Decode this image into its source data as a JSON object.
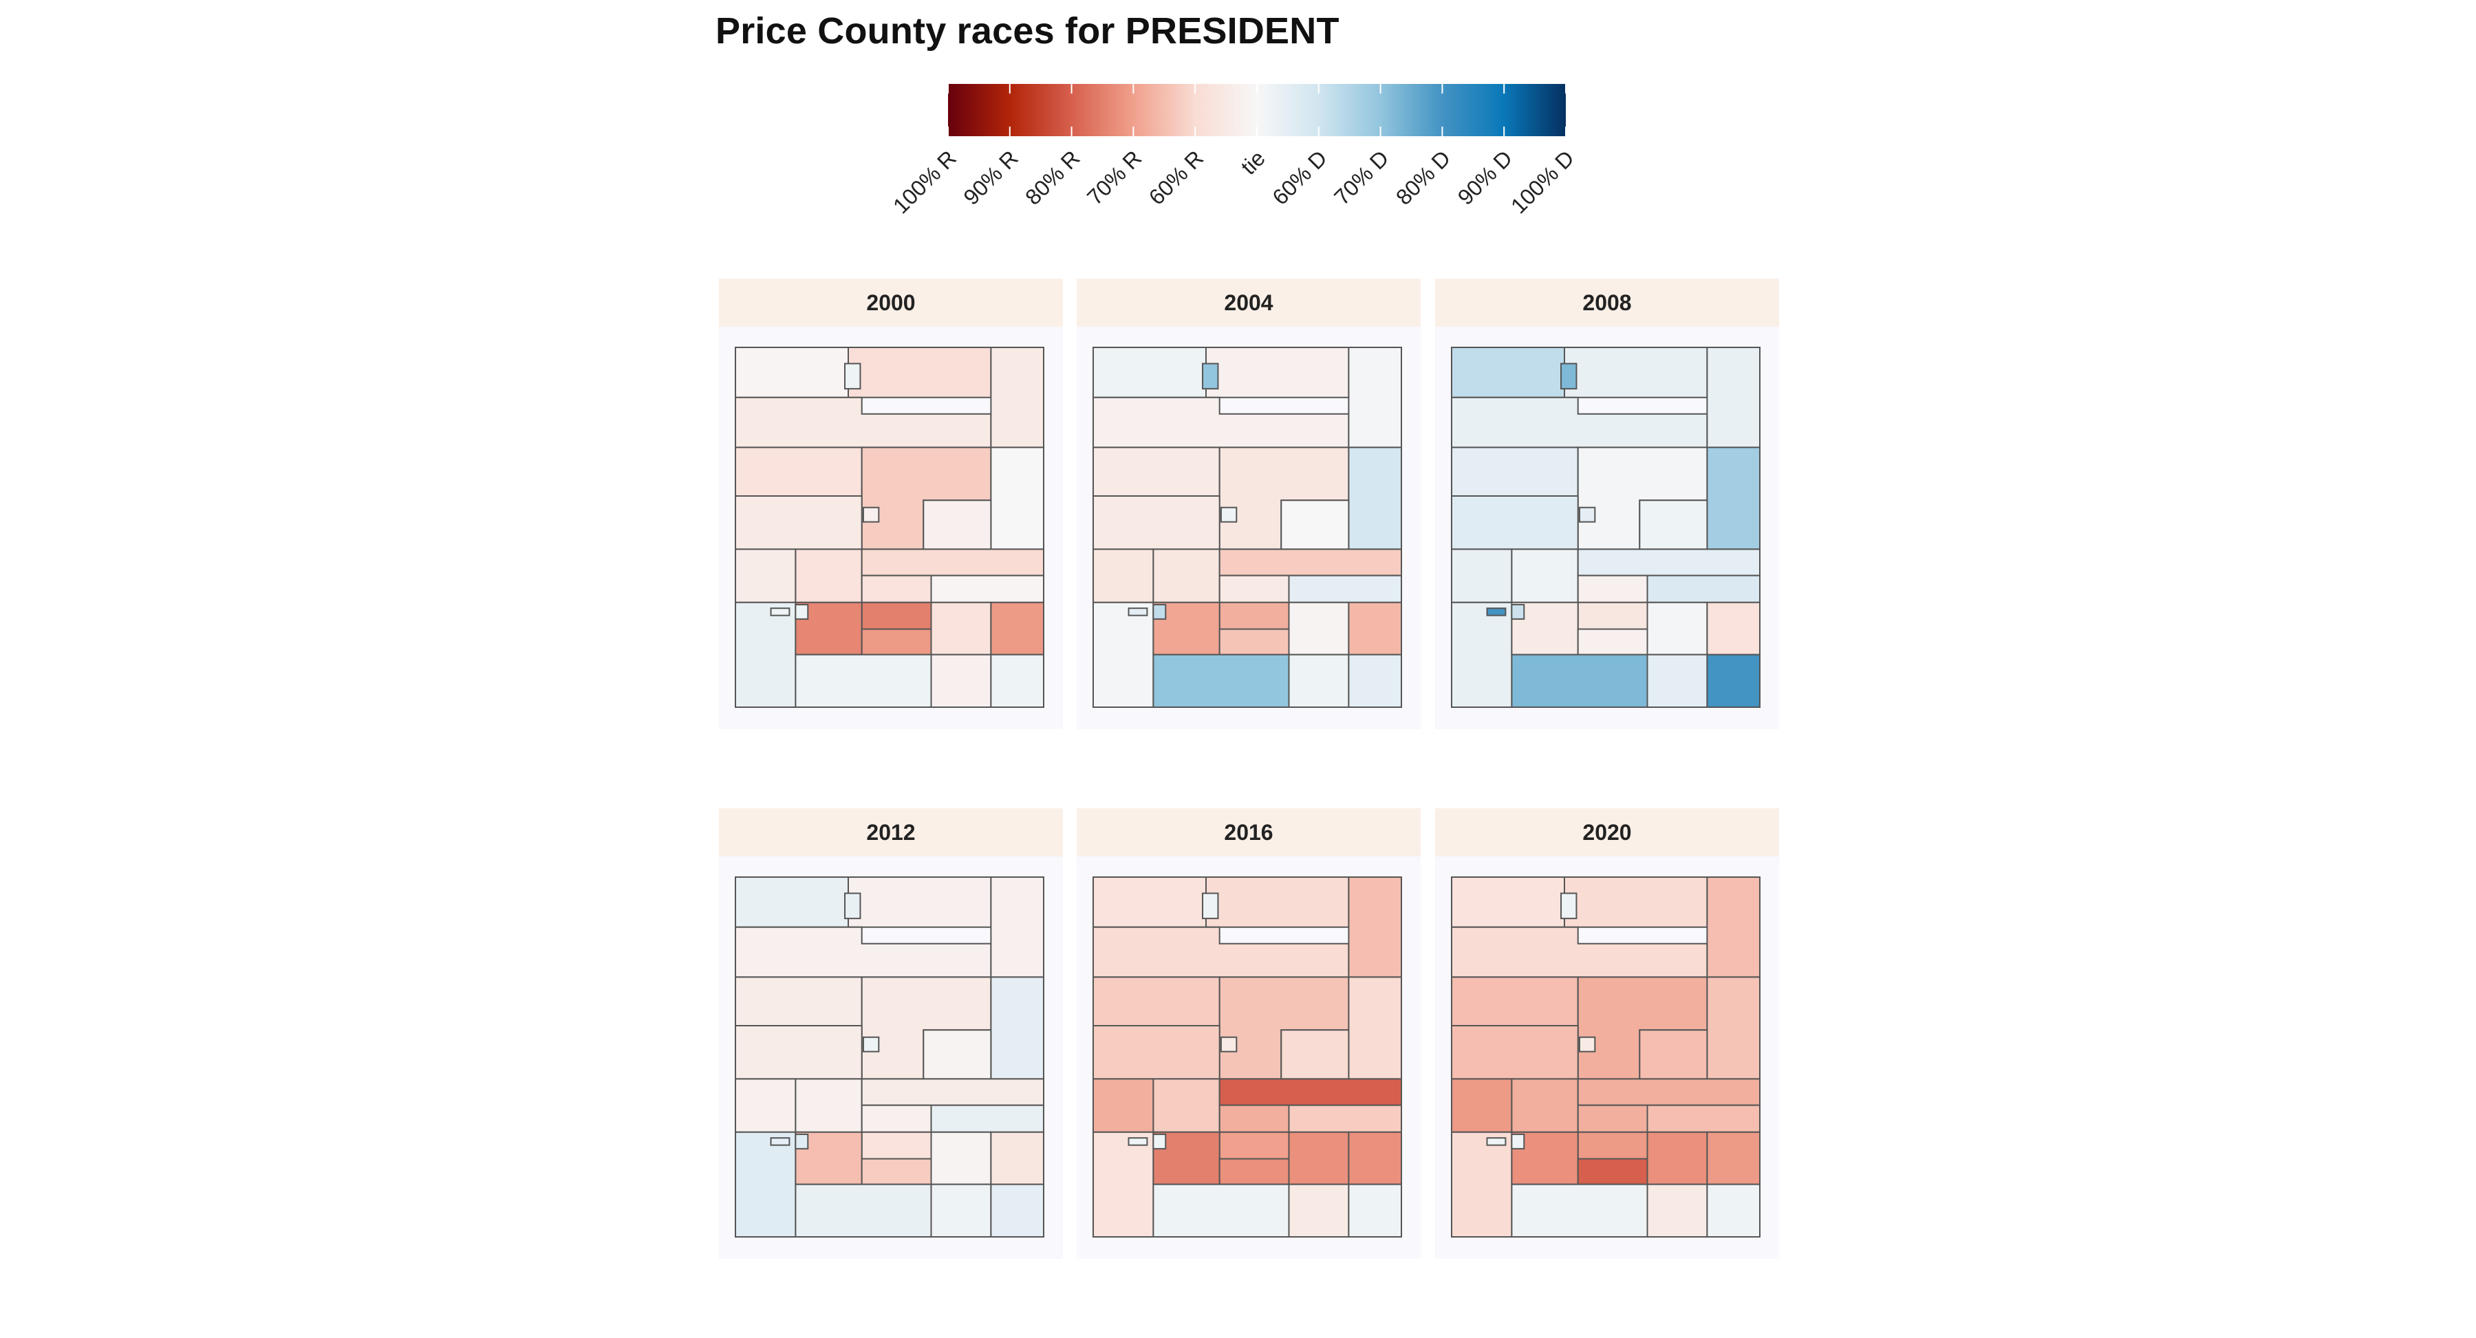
{
  "title": "Price County races for PRESIDENT",
  "chart_data": {
    "type": "heatmap",
    "subtype": "faceted choropleth map",
    "title": "Price County races for PRESIDENT",
    "legend": {
      "position": "top",
      "scale": "diverging",
      "labels": [
        "100% R",
        "90% R",
        "80% R",
        "70% R",
        "60% R",
        "tie",
        "60% D",
        "70% D",
        "80% D",
        "90% D",
        "100% D"
      ],
      "colors": {
        "r100": "#67000d",
        "r90": "#b2250a",
        "r80": "#d6604d",
        "r70": "#f0a08c",
        "r60": "#f9dcd3",
        "tie": "#f7f7f7",
        "d60": "#d1e5f0",
        "d70": "#92c5de",
        "d80": "#4393c3",
        "d90": "#0a78b8",
        "d100": "#053061"
      }
    },
    "colors": {
      "strip_background": "#fbf0e8",
      "panel_background": "#f8f8fd",
      "region_border": "#555555"
    },
    "regions": [
      "R1",
      "R2",
      "R3",
      "R4",
      "R5",
      "R6",
      "R7",
      "R8",
      "R9",
      "R10",
      "R11",
      "R12",
      "R13",
      "R14",
      "R15",
      "R16",
      "R17",
      "R18",
      "R19",
      "R20",
      "R21",
      "R22",
      "R23",
      "R24"
    ],
    "facets": [
      {
        "year": "2000",
        "margins": [
          -2,
          -18,
          -10,
          -10,
          -15,
          -25,
          0,
          -10,
          -5,
          -8,
          -15,
          -20,
          -15,
          -2,
          -50,
          -15,
          -42,
          8,
          -48,
          -42,
          5,
          -5,
          5,
          5
        ]
      },
      {
        "year": "2004",
        "margins": [
          5,
          -5,
          -5,
          2,
          -10,
          -12,
          18,
          -10,
          0,
          -12,
          -12,
          -25,
          -10,
          10,
          -35,
          -3,
          -32,
          2,
          -38,
          -28,
          40,
          5,
          10,
          25
        ]
      },
      {
        "year": "2008",
        "margins": [
          25,
          8,
          8,
          8,
          10,
          2,
          35,
          12,
          5,
          8,
          5,
          10,
          -5,
          15,
          -12,
          2,
          -15,
          8,
          -10,
          -5,
          45,
          10,
          60,
          22
        ]
      },
      {
        "year": "2012",
        "margins": [
          8,
          -5,
          -5,
          -5,
          -8,
          -10,
          10,
          -8,
          -3,
          -5,
          -5,
          -8,
          -5,
          8,
          -15,
          -3,
          -12,
          12,
          -30,
          -25,
          8,
          5,
          10,
          12
        ]
      },
      {
        "year": "2016",
        "margins": [
          -15,
          -20,
          -20,
          -30,
          -25,
          -28,
          -20,
          -25,
          -20,
          -35,
          -25,
          -60,
          -35,
          -25,
          -40,
          -45,
          -45,
          -15,
          -50,
          -45,
          5,
          -10,
          5,
          5
        ]
      },
      {
        "year": "2020",
        "margins": [
          -15,
          -20,
          -20,
          -30,
          -30,
          -35,
          -28,
          -30,
          -30,
          -42,
          -35,
          -35,
          -35,
          -30,
          -42,
          -45,
          -42,
          -20,
          -45,
          -60,
          5,
          -10,
          5,
          5
        ]
      }
    ]
  }
}
